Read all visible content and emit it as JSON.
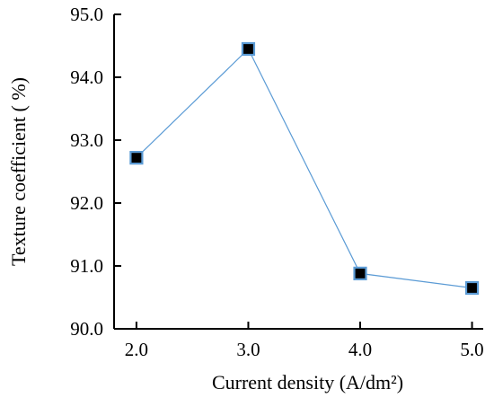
{
  "chart_data": {
    "type": "line",
    "title": "",
    "xlabel": "Current density (A/dm²)",
    "ylabel": "Texture coefficient ( %)",
    "x": [
      2.0,
      3.0,
      4.0,
      5.0
    ],
    "series": [
      {
        "values": [
          92.72,
          94.45,
          90.88,
          90.65
        ]
      }
    ],
    "xlim": [
      1.8,
      5.1
    ],
    "ylim": [
      90.0,
      95.0
    ],
    "xticks": [
      "2.0",
      "3.0",
      "4.0",
      "5.0"
    ],
    "yticks": [
      "90.0",
      "91.0",
      "92.0",
      "93.0",
      "94.0",
      "95.0"
    ],
    "grid": false,
    "line_color": "#5b9bd5",
    "marker_color": "#000000",
    "marker_edge_color": "#5b9bd5",
    "marker": "square"
  }
}
